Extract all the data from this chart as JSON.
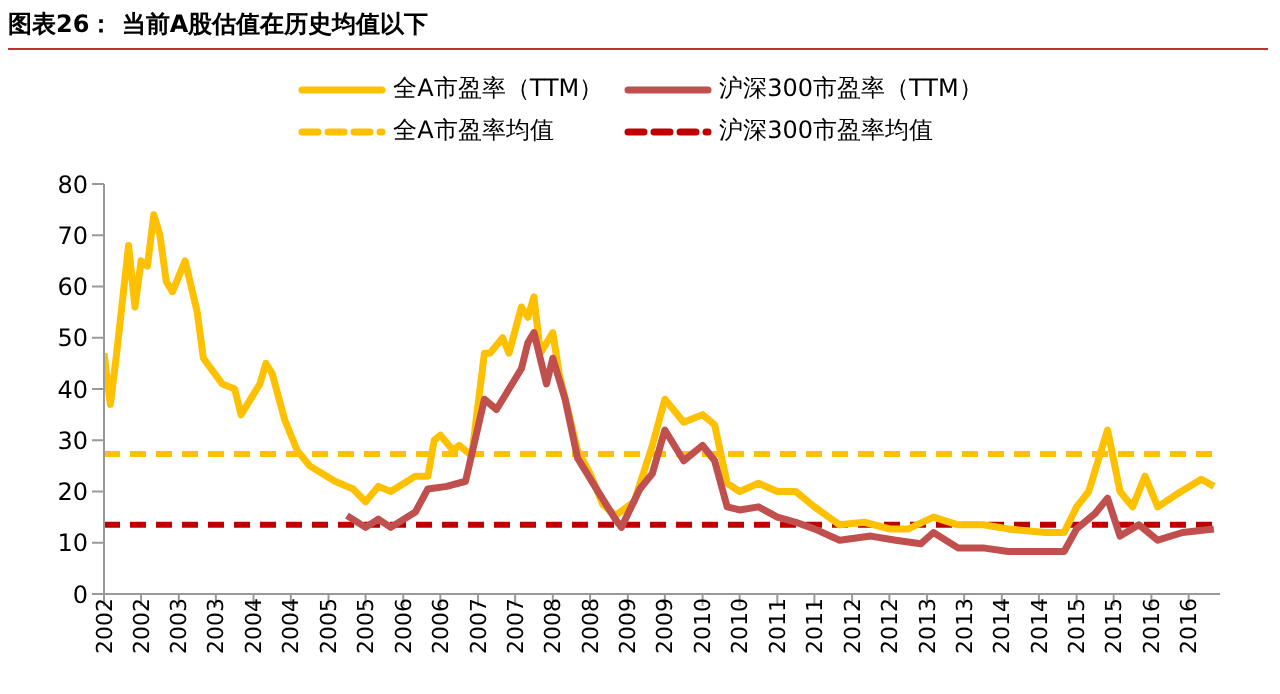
{
  "chart_data": {
    "type": "line",
    "title": "图表26：  当前A股估值在历史均值以下",
    "xlim": [
      "2002-01",
      "2016-12"
    ],
    "xticks": [
      {
        "value": "2002-01",
        "label": "2002"
      },
      {
        "value": "2002-07",
        "label": "2002"
      },
      {
        "value": "2003-01",
        "label": "2003"
      },
      {
        "value": "2003-07",
        "label": "2003"
      },
      {
        "value": "2004-01",
        "label": "2004"
      },
      {
        "value": "2004-07",
        "label": "2004"
      },
      {
        "value": "2005-01",
        "label": "2005"
      },
      {
        "value": "2005-07",
        "label": "2005"
      },
      {
        "value": "2006-01",
        "label": "2006"
      },
      {
        "value": "2006-07",
        "label": "2006"
      },
      {
        "value": "2007-01",
        "label": "2007"
      },
      {
        "value": "2007-07",
        "label": "2007"
      },
      {
        "value": "2008-01",
        "label": "2008"
      },
      {
        "value": "2008-07",
        "label": "2008"
      },
      {
        "value": "2009-01",
        "label": "2009"
      },
      {
        "value": "2009-07",
        "label": "2009"
      },
      {
        "value": "2010-01",
        "label": "2010"
      },
      {
        "value": "2010-07",
        "label": "2010"
      },
      {
        "value": "2011-01",
        "label": "2011"
      },
      {
        "value": "2011-07",
        "label": "2011"
      },
      {
        "value": "2012-01",
        "label": "2012"
      },
      {
        "value": "2012-07",
        "label": "2012"
      },
      {
        "value": "2013-01",
        "label": "2013"
      },
      {
        "value": "2013-07",
        "label": "2013"
      },
      {
        "value": "2014-01",
        "label": "2014"
      },
      {
        "value": "2014-07",
        "label": "2014"
      },
      {
        "value": "2015-01",
        "label": "2015"
      },
      {
        "value": "2015-07",
        "label": "2015"
      },
      {
        "value": "2016-01",
        "label": "2016"
      },
      {
        "value": "2016-07",
        "label": "2016"
      }
    ],
    "ylim": [
      0,
      80
    ],
    "yticks": [
      0,
      10,
      20,
      30,
      40,
      50,
      60,
      70,
      80
    ],
    "grid": false,
    "legend": "top",
    "marker": "none",
    "line_style": "solid",
    "series": [
      {
        "name": "全A市盈率（TTM）",
        "color": "#ffc000",
        "x": [
          "2002-01",
          "2002-02",
          "2002-03",
          "2002-05",
          "2002-06",
          "2002-07",
          "2002-08",
          "2002-09",
          "2002-10",
          "2002-11",
          "2002-12",
          "2003-02",
          "2003-04",
          "2003-05",
          "2003-08",
          "2003-10",
          "2003-11",
          "2004-02",
          "2004-03",
          "2004-04",
          "2004-06",
          "2004-08",
          "2004-10",
          "2005-02",
          "2005-05",
          "2005-07",
          "2005-09",
          "2005-11",
          "2006-03",
          "2006-05",
          "2006-06",
          "2006-07",
          "2006-09",
          "2006-10",
          "2006-12",
          "2007-02",
          "2007-03",
          "2007-05",
          "2007-06",
          "2007-08",
          "2007-09",
          "2007-10",
          "2007-11",
          "2008-01",
          "2008-02",
          "2008-05",
          "2008-07",
          "2008-09",
          "2008-11",
          "2009-02",
          "2009-05",
          "2009-07",
          "2009-10",
          "2010-01",
          "2010-03",
          "2010-05",
          "2010-07",
          "2010-10",
          "2011-01",
          "2011-04",
          "2011-07",
          "2011-11",
          "2012-03",
          "2012-07",
          "2012-10",
          "2013-02",
          "2013-06",
          "2013-10",
          "2014-02",
          "2014-08",
          "2014-11",
          "2015-01",
          "2015-03",
          "2015-06",
          "2015-08",
          "2015-10",
          "2015-12",
          "2016-02",
          "2016-05",
          "2016-09",
          "2016-11"
        ],
        "values": [
          47,
          37,
          46,
          68,
          56,
          65,
          64,
          74,
          70,
          61,
          59,
          65,
          55,
          46,
          41,
          40,
          35,
          41,
          45,
          43,
          34,
          28,
          25,
          22,
          20.5,
          18,
          21,
          20,
          23,
          23,
          30,
          31,
          28,
          29,
          27,
          47,
          47,
          50,
          47,
          56,
          54,
          58,
          47,
          51,
          43,
          28,
          23.5,
          17.5,
          15.3,
          18,
          29,
          38,
          33.5,
          35,
          33,
          21.6,
          20,
          21.6,
          20,
          20,
          17,
          13.5,
          14,
          12.7,
          12.7,
          15,
          13.5,
          13.5,
          12.7,
          12,
          12,
          17,
          20,
          32,
          20,
          17,
          23,
          17,
          19.4,
          22.4,
          21
        ]
      },
      {
        "name": "沪深300市盈率（TTM）",
        "color": "#c0504d",
        "x": [
          "2005-04",
          "2005-07",
          "2005-09",
          "2005-11",
          "2006-03",
          "2006-05",
          "2006-08",
          "2006-11",
          "2007-02",
          "2007-04",
          "2007-06",
          "2007-08",
          "2007-09",
          "2007-10",
          "2007-12",
          "2008-01",
          "2008-03",
          "2008-05",
          "2008-08",
          "2008-11",
          "2008-12",
          "2009-03",
          "2009-05",
          "2009-07",
          "2009-10",
          "2010-01",
          "2010-03",
          "2010-05",
          "2010-07",
          "2010-10",
          "2011-01",
          "2011-04",
          "2011-07",
          "2011-11",
          "2012-04",
          "2012-08",
          "2012-12",
          "2013-02",
          "2013-06",
          "2013-10",
          "2014-02",
          "2014-07",
          "2014-11",
          "2015-01",
          "2015-04",
          "2015-06",
          "2015-08",
          "2015-11",
          "2016-02",
          "2016-06",
          "2016-11"
        ],
        "values": [
          15.3,
          13,
          14.6,
          13,
          16,
          20.5,
          21,
          22,
          38,
          36,
          40,
          44,
          49,
          51,
          41,
          46,
          38,
          26.5,
          20.5,
          14.6,
          13,
          20.5,
          23.5,
          32,
          26,
          29,
          26,
          17,
          16.4,
          17,
          15,
          14,
          12.7,
          10.5,
          11.3,
          10.5,
          9.8,
          12,
          9,
          9,
          8.3,
          8.3,
          8.3,
          12.7,
          15.7,
          18.7,
          11.3,
          13.5,
          10.5,
          12,
          12.7
        ]
      }
    ],
    "ref_lines": [
      {
        "axis": "y",
        "value": 27.3,
        "label": "全A市盈率均值",
        "color": "#ffc000",
        "line_style": "dashed"
      },
      {
        "axis": "y",
        "value": 13.5,
        "label": "沪深300市盈率均值",
        "color": "#c00000",
        "line_style": "dashed"
      }
    ]
  }
}
